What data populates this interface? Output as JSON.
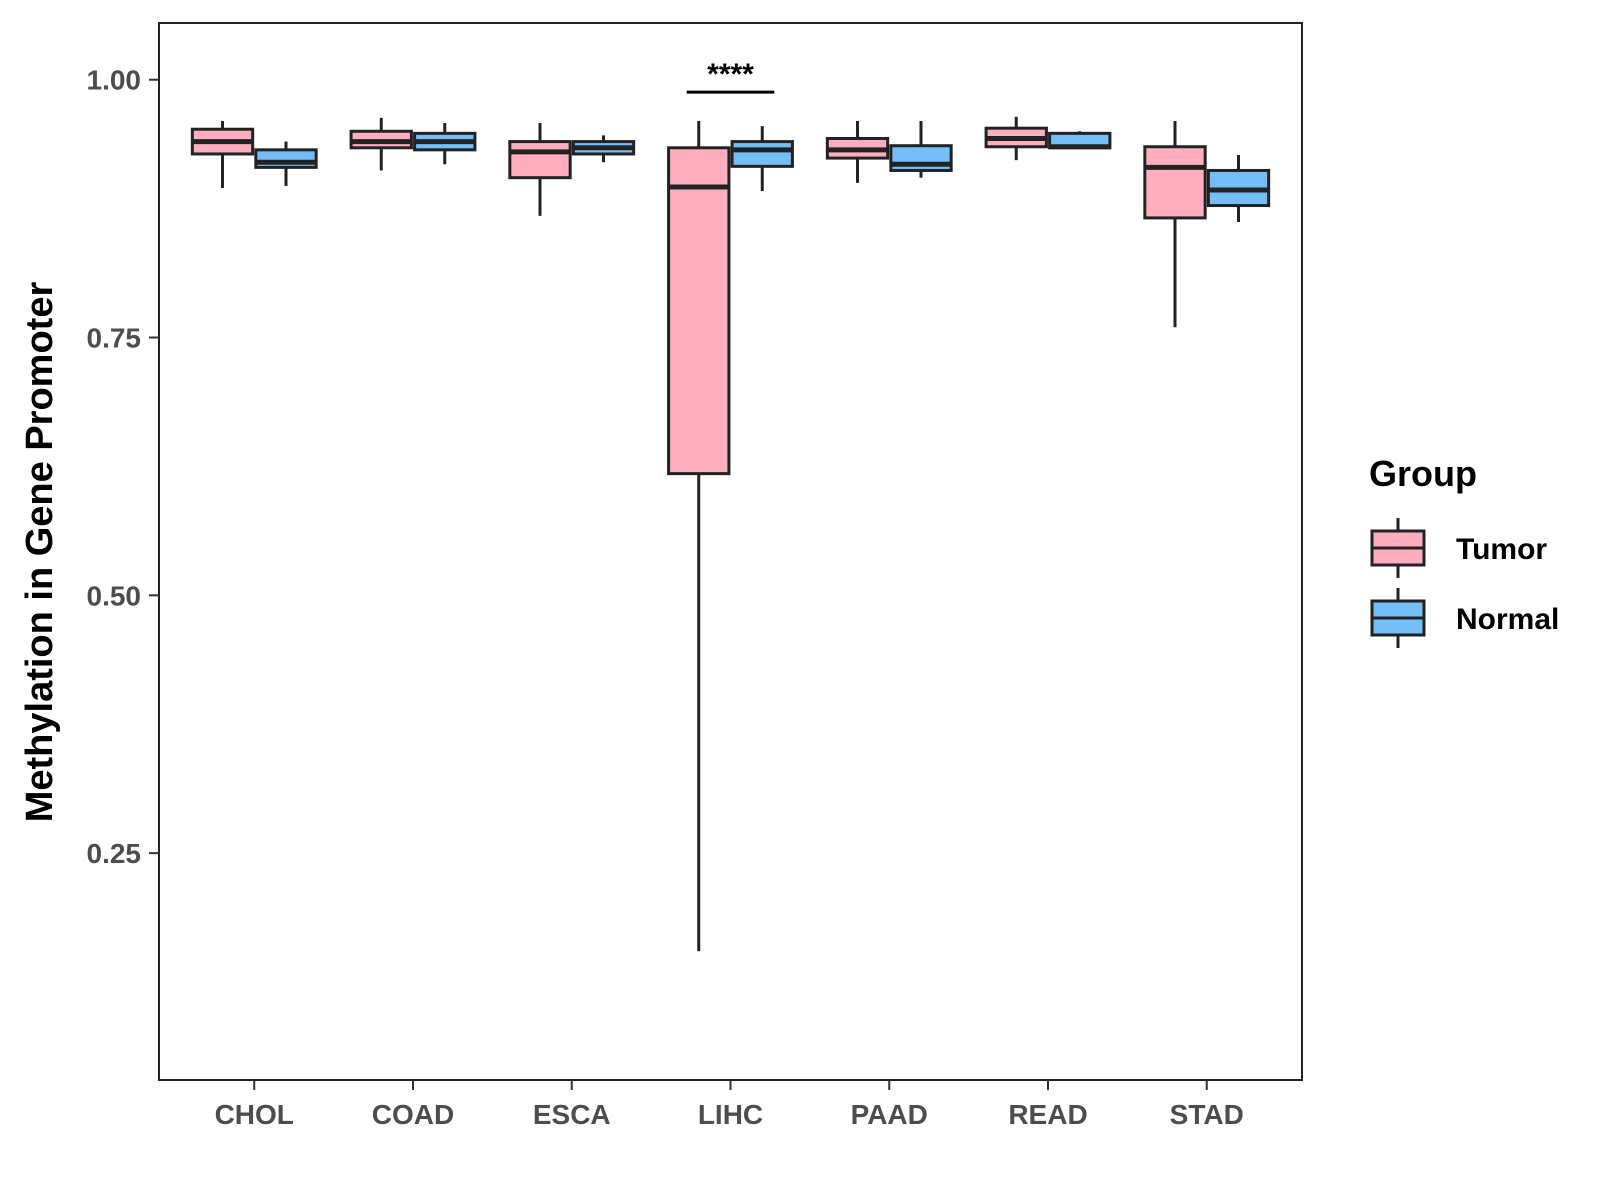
{
  "chart_data": {
    "type": "boxplot",
    "title": "",
    "xlabel": "",
    "ylabel": "Methylation in Gene Promoter",
    "ylim": [
      0.03,
      1.055
    ],
    "yticks": [
      "0.25",
      "0.50",
      "0.75",
      "1.00"
    ],
    "categories": [
      "CHOL",
      "COAD",
      "ESCA",
      "LIHC",
      "PAAD",
      "READ",
      "STAD"
    ],
    "legend": {
      "title": "Group",
      "position": "right",
      "items": [
        {
          "name": "Tumor",
          "color": "#FFAEC0"
        },
        {
          "name": "Normal",
          "color": "#74BEF7"
        }
      ]
    },
    "series": [
      {
        "name": "Tumor",
        "color": "#FFAEC0",
        "boxes": [
          {
            "category": "CHOL",
            "min": 0.895,
            "q1": 0.928,
            "median": 0.94,
            "q3": 0.952,
            "max": 0.96
          },
          {
            "category": "COAD",
            "min": 0.912,
            "q1": 0.934,
            "median": 0.94,
            "q3": 0.95,
            "max": 0.963
          },
          {
            "category": "ESCA",
            "min": 0.868,
            "q1": 0.905,
            "median": 0.93,
            "q3": 0.94,
            "max": 0.958
          },
          {
            "category": "LIHC",
            "min": 0.155,
            "q1": 0.618,
            "median": 0.896,
            "q3": 0.934,
            "max": 0.96
          },
          {
            "category": "PAAD",
            "min": 0.9,
            "q1": 0.924,
            "median": 0.932,
            "q3": 0.943,
            "max": 0.96
          },
          {
            "category": "READ",
            "min": 0.922,
            "q1": 0.935,
            "median": 0.943,
            "q3": 0.953,
            "max": 0.964
          },
          {
            "category": "STAD",
            "min": 0.76,
            "q1": 0.866,
            "median": 0.915,
            "q3": 0.935,
            "max": 0.96
          }
        ]
      },
      {
        "name": "Normal",
        "color": "#74BEF7",
        "boxes": [
          {
            "category": "CHOL",
            "min": 0.897,
            "q1": 0.915,
            "median": 0.92,
            "q3": 0.932,
            "max": 0.94
          },
          {
            "category": "COAD",
            "min": 0.918,
            "q1": 0.932,
            "median": 0.94,
            "q3": 0.948,
            "max": 0.958
          },
          {
            "category": "ESCA",
            "min": 0.92,
            "q1": 0.928,
            "median": 0.934,
            "q3": 0.94,
            "max": 0.946
          },
          {
            "category": "LIHC",
            "min": 0.892,
            "q1": 0.916,
            "median": 0.932,
            "q3": 0.94,
            "max": 0.955
          },
          {
            "category": "PAAD",
            "min": 0.905,
            "q1": 0.912,
            "median": 0.918,
            "q3": 0.936,
            "max": 0.96
          },
          {
            "category": "READ",
            "min": 0.933,
            "q1": 0.934,
            "median": 0.935,
            "q3": 0.948,
            "max": 0.95
          },
          {
            "category": "STAD",
            "min": 0.862,
            "q1": 0.878,
            "median": 0.893,
            "q3": 0.912,
            "max": 0.927
          }
        ]
      }
    ],
    "annotations": [
      {
        "category": "LIHC",
        "label": "****",
        "y": 0.988
      }
    ]
  }
}
